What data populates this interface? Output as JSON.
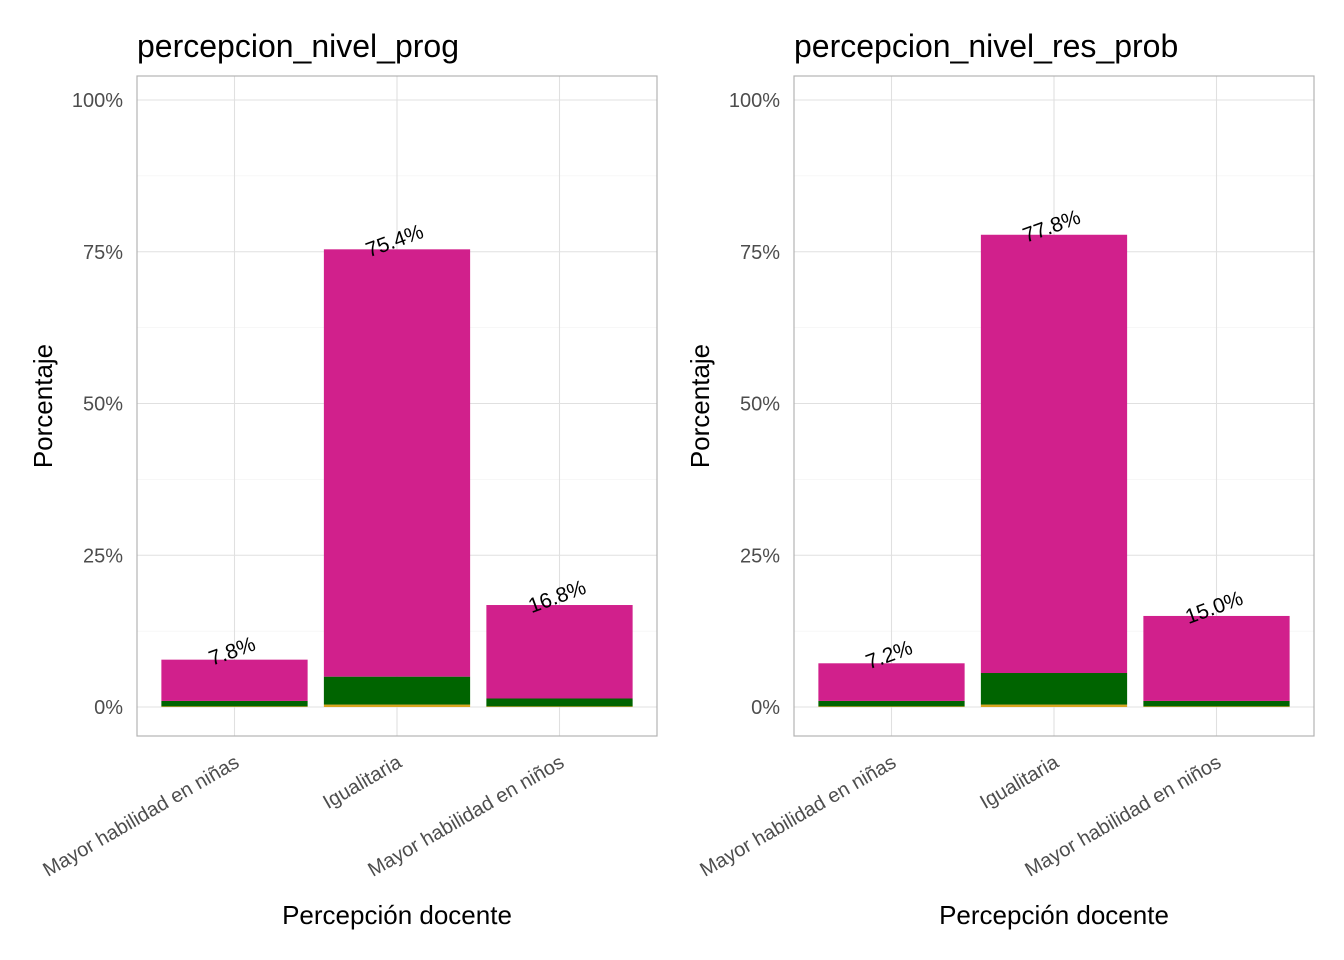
{
  "chart_data": [
    {
      "type": "bar",
      "stacked": true,
      "title": "percepcion_nivel_prog",
      "xlabel": "Percepción docente",
      "ylabel": "Porcentaje",
      "ylim": [
        0,
        100
      ],
      "yticks": [
        "0%",
        "25%",
        "50%",
        "75%",
        "100%"
      ],
      "categories": [
        "Mayor habilidad en niñas",
        "Igualitaria",
        "Mayor habilidad en niños"
      ],
      "totals": [
        7.8,
        75.4,
        16.8
      ],
      "total_labels": [
        "7.8%",
        "75.4%",
        "16.8%"
      ],
      "series": [
        {
          "color": "#DAA520",
          "values": [
            0.1,
            0.4,
            0.1
          ]
        },
        {
          "color": "#006400",
          "values": [
            0.9,
            4.6,
            1.3
          ]
        },
        {
          "color": "#D1208C",
          "values": [
            6.8,
            70.4,
            15.4
          ]
        }
      ]
    },
    {
      "type": "bar",
      "stacked": true,
      "title": "percepcion_nivel_res_prob",
      "xlabel": "Percepción docente",
      "ylabel": "Porcentaje",
      "ylim": [
        0,
        100
      ],
      "yticks": [
        "0%",
        "25%",
        "50%",
        "75%",
        "100%"
      ],
      "categories": [
        "Mayor habilidad en niñas",
        "Igualitaria",
        "Mayor habilidad en niños"
      ],
      "totals": [
        7.2,
        77.8,
        15.0
      ],
      "total_labels": [
        "7.2%",
        "77.8%",
        "15.0%"
      ],
      "series": [
        {
          "color": "#DAA520",
          "values": [
            0.1,
            0.4,
            0.1
          ]
        },
        {
          "color": "#006400",
          "values": [
            0.9,
            5.2,
            0.9
          ]
        },
        {
          "color": "#D1208C",
          "values": [
            6.2,
            72.2,
            14.0
          ]
        }
      ]
    }
  ]
}
